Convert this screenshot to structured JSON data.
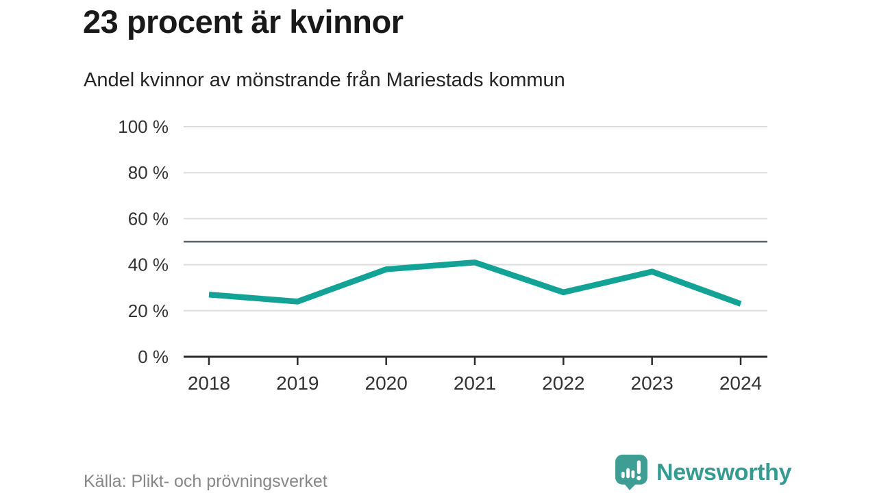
{
  "header": {
    "title": "23 procent är kvinnor",
    "subtitle": "Andel kvinnor av mönstrande från Mariestads kommun"
  },
  "chart_data": {
    "type": "line",
    "title": "23 procent är kvinnor",
    "subtitle": "Andel kvinnor av mönstrande från Mariestads kommun",
    "categories": [
      "2018",
      "2019",
      "2020",
      "2021",
      "2022",
      "2023",
      "2024"
    ],
    "series": [
      {
        "name": "Andel kvinnor av mönstrande",
        "values": [
          27,
          24,
          38,
          41,
          28,
          37,
          23
        ]
      }
    ],
    "xlabel": "",
    "ylabel": "",
    "ylim": [
      0,
      100
    ],
    "yticks": [
      0,
      20,
      40,
      60,
      80,
      100
    ],
    "ytick_suffix": " %",
    "reference_line": 50,
    "grid": true,
    "legend": "none",
    "colors": {
      "line": "#12a296",
      "grid": "#dddddd",
      "reference": "#5c6165",
      "axis": "#2b2b2b",
      "tick_labels": "#333333"
    }
  },
  "footer": {
    "source": "Källa: Plikt- och prövningsverket",
    "brand": "Newsworthy",
    "brand_color": "#359a90",
    "logo_color": "#3f9e94"
  }
}
